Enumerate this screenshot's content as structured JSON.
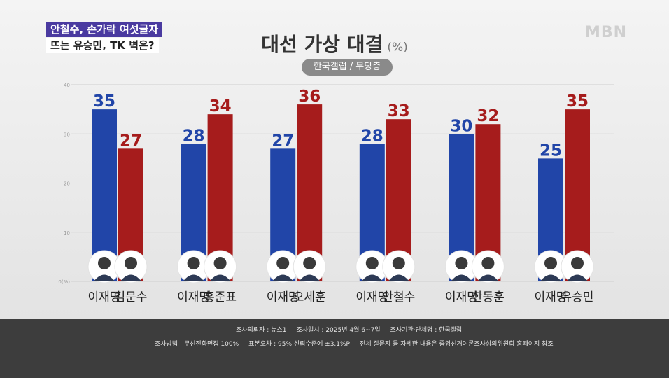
{
  "topic": {
    "line1": "안철수, 손가락 여섯글자",
    "line2": "뜨는 유승민, TK 벽은?"
  },
  "logo": "MBN",
  "title": "대선 가상 대결",
  "unit": "(%)",
  "source_pill": "한국갤럽 / 무당층",
  "colors": {
    "blue": "#2145a8",
    "red": "#a61c1c",
    "label_blue": "#2145a8",
    "label_red": "#a61c1c"
  },
  "chart_data": {
    "type": "bar",
    "ylim": [
      0,
      40
    ],
    "yticks": [
      "0(%)",
      "10",
      "20",
      "30",
      "40"
    ],
    "grid": true,
    "groups": [
      {
        "pair": [
          {
            "name": "이재명",
            "value": 35,
            "party": "blue"
          },
          {
            "name": "김문수",
            "value": 27,
            "party": "red"
          }
        ]
      },
      {
        "pair": [
          {
            "name": "이재명",
            "value": 28,
            "party": "blue"
          },
          {
            "name": "홍준표",
            "value": 34,
            "party": "red"
          }
        ]
      },
      {
        "pair": [
          {
            "name": "이재명",
            "value": 27,
            "party": "blue"
          },
          {
            "name": "오세훈",
            "value": 36,
            "party": "red"
          }
        ]
      },
      {
        "pair": [
          {
            "name": "이재명",
            "value": 28,
            "party": "blue"
          },
          {
            "name": "안철수",
            "value": 33,
            "party": "red"
          }
        ]
      },
      {
        "pair": [
          {
            "name": "이재명",
            "value": 30,
            "party": "blue"
          },
          {
            "name": "한동훈",
            "value": 32,
            "party": "red"
          }
        ]
      },
      {
        "pair": [
          {
            "name": "이재명",
            "value": 25,
            "party": "blue"
          },
          {
            "name": "유승민",
            "value": 35,
            "party": "red"
          }
        ]
      }
    ]
  },
  "footer": {
    "line1": [
      "조사의뢰자 : 뉴스1",
      "조사일시 : 2025년 4월 6~7일",
      "조사기관·단체명 : 한국갤럽"
    ],
    "line2": [
      "조사방법 : 무선전화면접 100%",
      "표본오차 : 95% 신뢰수준에 ±3.1%P",
      "전체 질문지 등 자세한 내용은 중앙선거여론조사심의위원회 홈페이지 참조"
    ]
  }
}
